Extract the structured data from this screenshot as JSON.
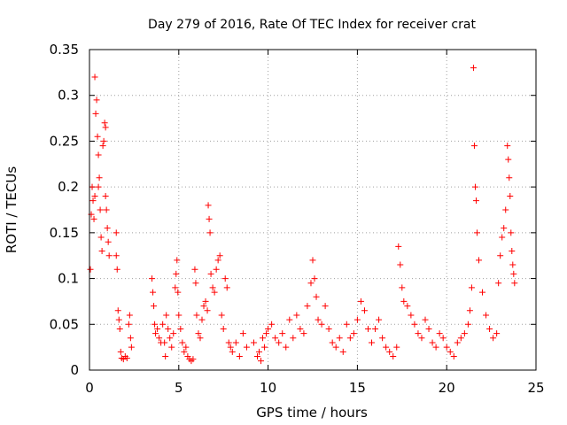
{
  "chart_data": {
    "type": "scatter",
    "title": "Day 279 of 2016, Rate Of TEC Index for receiver crat",
    "xlabel": "GPS time / hours",
    "ylabel": "ROTI / TECUs",
    "xlim": [
      0,
      25
    ],
    "ylim": [
      0,
      0.35
    ],
    "x_ticks": [
      0,
      5,
      10,
      15,
      20,
      25
    ],
    "x_tick_labels": [
      "0",
      "5",
      "10",
      "15",
      "20",
      "25"
    ],
    "y_ticks": [
      0,
      0.05,
      0.1,
      0.15,
      0.2,
      0.25,
      0.3,
      0.35
    ],
    "y_tick_labels": [
      "0",
      "0.05",
      "0.1",
      "0.15",
      "0.2",
      "0.25",
      "0.3",
      "0.35"
    ],
    "grid": true,
    "marker": "plus",
    "series": [
      {
        "name": "ROTI",
        "color": "#ff0000",
        "points": [
          [
            0.05,
            0.11
          ],
          [
            0.1,
            0.17
          ],
          [
            0.15,
            0.2
          ],
          [
            0.2,
            0.185
          ],
          [
            0.25,
            0.165
          ],
          [
            0.3,
            0.19
          ],
          [
            0.3,
            0.32
          ],
          [
            0.35,
            0.28
          ],
          [
            0.4,
            0.295
          ],
          [
            0.45,
            0.255
          ],
          [
            0.5,
            0.2
          ],
          [
            0.5,
            0.235
          ],
          [
            0.55,
            0.21
          ],
          [
            0.6,
            0.175
          ],
          [
            0.65,
            0.145
          ],
          [
            0.7,
            0.13
          ],
          [
            0.75,
            0.245
          ],
          [
            0.8,
            0.25
          ],
          [
            0.85,
            0.27
          ],
          [
            0.9,
            0.265
          ],
          [
            0.9,
            0.19
          ],
          [
            0.95,
            0.175
          ],
          [
            1.0,
            0.155
          ],
          [
            1.05,
            0.14
          ],
          [
            1.1,
            0.125
          ],
          [
            1.5,
            0.15
          ],
          [
            1.5,
            0.125
          ],
          [
            1.55,
            0.11
          ],
          [
            1.6,
            0.065
          ],
          [
            1.65,
            0.055
          ],
          [
            1.7,
            0.045
          ],
          [
            1.75,
            0.02
          ],
          [
            1.8,
            0.013
          ],
          [
            1.9,
            0.012
          ],
          [
            2.0,
            0.015
          ],
          [
            2.1,
            0.013
          ],
          [
            2.2,
            0.05
          ],
          [
            2.25,
            0.06
          ],
          [
            2.3,
            0.035
          ],
          [
            2.35,
            0.025
          ],
          [
            3.5,
            0.1
          ],
          [
            3.55,
            0.085
          ],
          [
            3.6,
            0.07
          ],
          [
            3.65,
            0.05
          ],
          [
            3.7,
            0.04
          ],
          [
            3.8,
            0.045
          ],
          [
            3.9,
            0.035
          ],
          [
            4.0,
            0.03
          ],
          [
            4.1,
            0.05
          ],
          [
            4.2,
            0.03
          ],
          [
            4.25,
            0.015
          ],
          [
            4.3,
            0.06
          ],
          [
            4.4,
            0.045
          ],
          [
            4.5,
            0.035
          ],
          [
            4.6,
            0.025
          ],
          [
            4.7,
            0.04
          ],
          [
            4.8,
            0.09
          ],
          [
            4.85,
            0.105
          ],
          [
            4.9,
            0.12
          ],
          [
            4.95,
            0.085
          ],
          [
            5.0,
            0.06
          ],
          [
            5.1,
            0.045
          ],
          [
            5.2,
            0.03
          ],
          [
            5.3,
            0.02
          ],
          [
            5.4,
            0.025
          ],
          [
            5.5,
            0.015
          ],
          [
            5.6,
            0.012
          ],
          [
            5.7,
            0.01
          ],
          [
            5.8,
            0.012
          ],
          [
            5.9,
            0.11
          ],
          [
            5.95,
            0.095
          ],
          [
            6.0,
            0.06
          ],
          [
            6.1,
            0.04
          ],
          [
            6.2,
            0.035
          ],
          [
            6.3,
            0.055
          ],
          [
            6.4,
            0.07
          ],
          [
            6.5,
            0.075
          ],
          [
            6.6,
            0.065
          ],
          [
            6.65,
            0.18
          ],
          [
            6.7,
            0.165
          ],
          [
            6.75,
            0.15
          ],
          [
            6.8,
            0.105
          ],
          [
            6.9,
            0.09
          ],
          [
            7.0,
            0.085
          ],
          [
            7.1,
            0.11
          ],
          [
            7.2,
            0.12
          ],
          [
            7.3,
            0.125
          ],
          [
            7.4,
            0.06
          ],
          [
            7.5,
            0.045
          ],
          [
            7.6,
            0.1
          ],
          [
            7.7,
            0.09
          ],
          [
            7.8,
            0.03
          ],
          [
            7.9,
            0.025
          ],
          [
            8.0,
            0.02
          ],
          [
            8.2,
            0.03
          ],
          [
            8.4,
            0.015
          ],
          [
            8.6,
            0.04
          ],
          [
            8.8,
            0.025
          ],
          [
            9.2,
            0.03
          ],
          [
            9.4,
            0.015
          ],
          [
            9.5,
            0.02
          ],
          [
            9.6,
            0.01
          ],
          [
            9.7,
            0.035
          ],
          [
            9.8,
            0.025
          ],
          [
            9.9,
            0.04
          ],
          [
            10.0,
            0.045
          ],
          [
            10.2,
            0.05
          ],
          [
            10.4,
            0.035
          ],
          [
            10.6,
            0.03
          ],
          [
            10.8,
            0.04
          ],
          [
            11.0,
            0.025
          ],
          [
            11.2,
            0.055
          ],
          [
            11.4,
            0.035
          ],
          [
            11.6,
            0.06
          ],
          [
            11.8,
            0.045
          ],
          [
            12.0,
            0.04
          ],
          [
            12.2,
            0.07
          ],
          [
            12.4,
            0.095
          ],
          [
            12.5,
            0.12
          ],
          [
            12.6,
            0.1
          ],
          [
            12.7,
            0.08
          ],
          [
            12.8,
            0.055
          ],
          [
            13.0,
            0.05
          ],
          [
            13.2,
            0.07
          ],
          [
            13.4,
            0.045
          ],
          [
            13.6,
            0.03
          ],
          [
            13.8,
            0.025
          ],
          [
            14.0,
            0.035
          ],
          [
            14.2,
            0.02
          ],
          [
            14.4,
            0.05
          ],
          [
            14.6,
            0.035
          ],
          [
            14.8,
            0.04
          ],
          [
            15.0,
            0.055
          ],
          [
            15.2,
            0.075
          ],
          [
            15.4,
            0.065
          ],
          [
            15.6,
            0.045
          ],
          [
            15.8,
            0.03
          ],
          [
            16.0,
            0.045
          ],
          [
            16.2,
            0.055
          ],
          [
            16.4,
            0.035
          ],
          [
            16.6,
            0.025
          ],
          [
            16.8,
            0.02
          ],
          [
            17.0,
            0.015
          ],
          [
            17.2,
            0.025
          ],
          [
            17.3,
            0.135
          ],
          [
            17.4,
            0.115
          ],
          [
            17.5,
            0.09
          ],
          [
            17.6,
            0.075
          ],
          [
            17.8,
            0.07
          ],
          [
            18.0,
            0.06
          ],
          [
            18.2,
            0.05
          ],
          [
            18.4,
            0.04
          ],
          [
            18.6,
            0.035
          ],
          [
            18.8,
            0.055
          ],
          [
            19.0,
            0.045
          ],
          [
            19.2,
            0.03
          ],
          [
            19.4,
            0.025
          ],
          [
            19.6,
            0.04
          ],
          [
            19.8,
            0.035
          ],
          [
            20.0,
            0.025
          ],
          [
            20.2,
            0.02
          ],
          [
            20.4,
            0.015
          ],
          [
            20.6,
            0.03
          ],
          [
            20.8,
            0.035
          ],
          [
            21.0,
            0.04
          ],
          [
            21.2,
            0.05
          ],
          [
            21.3,
            0.065
          ],
          [
            21.4,
            0.09
          ],
          [
            21.5,
            0.33
          ],
          [
            21.55,
            0.245
          ],
          [
            21.6,
            0.2
          ],
          [
            21.65,
            0.185
          ],
          [
            21.7,
            0.15
          ],
          [
            21.8,
            0.12
          ],
          [
            22.0,
            0.085
          ],
          [
            22.2,
            0.06
          ],
          [
            22.4,
            0.045
          ],
          [
            22.6,
            0.035
          ],
          [
            22.8,
            0.04
          ],
          [
            22.9,
            0.095
          ],
          [
            23.0,
            0.125
          ],
          [
            23.1,
            0.145
          ],
          [
            23.2,
            0.155
          ],
          [
            23.3,
            0.175
          ],
          [
            23.4,
            0.245
          ],
          [
            23.45,
            0.23
          ],
          [
            23.5,
            0.21
          ],
          [
            23.55,
            0.19
          ],
          [
            23.6,
            0.15
          ],
          [
            23.65,
            0.13
          ],
          [
            23.7,
            0.115
          ],
          [
            23.75,
            0.105
          ],
          [
            23.8,
            0.095
          ]
        ]
      }
    ]
  }
}
